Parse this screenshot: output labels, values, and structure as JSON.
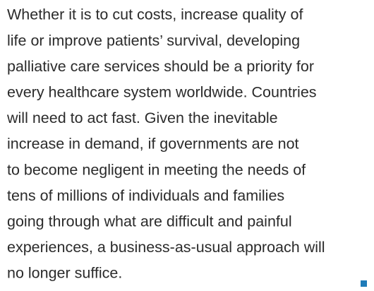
{
  "paragraph": {
    "lines": [
      "Whether it is to cut costs, increase quality of",
      "life or improve patients’ survival, developing",
      "palliative care services should be a priority for",
      "every healthcare system worldwide. Countries",
      "will need to act fast. Given the inevitable",
      "increase in demand, if governments are not",
      "to become negligent in meeting the needs of",
      "tens of millions of individuals and families",
      "going through what are difficult and painful",
      "experiences, a business-as-usual approach will",
      "no longer suffice."
    ]
  }
}
